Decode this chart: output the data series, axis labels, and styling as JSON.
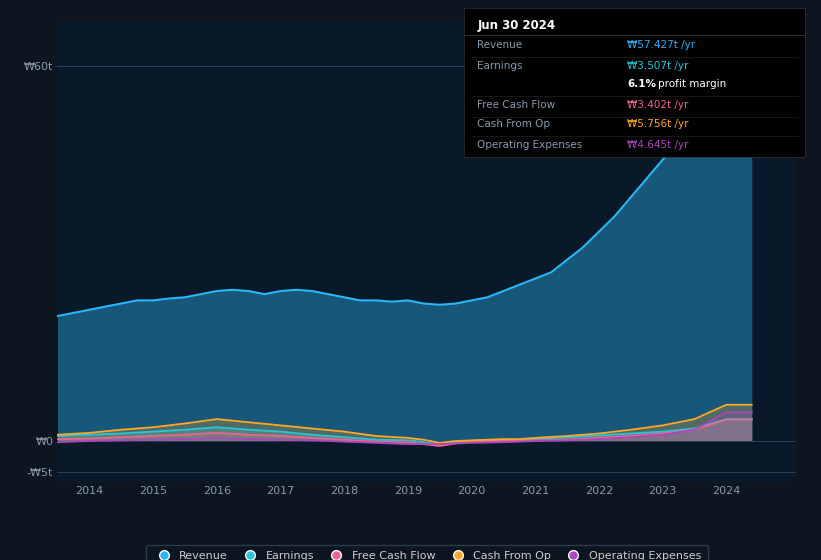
{
  "background_color": "#0d1520",
  "plot_bg_color": "#0a1929",
  "colors": {
    "revenue": "#29b6f6",
    "earnings": "#26c6da",
    "free_cash_flow": "#f06292",
    "cash_from_op": "#ffa726",
    "operating_expenses": "#ab47bc"
  },
  "ylim": [
    -6.5,
    67
  ],
  "xlim": [
    2013.5,
    2025.1
  ],
  "xtick_years": [
    2014,
    2015,
    2016,
    2017,
    2018,
    2019,
    2020,
    2021,
    2022,
    2023,
    2024
  ],
  "ytick_vals": [
    -5,
    0,
    60
  ],
  "ytick_labels": [
    "-₩5t",
    "₩0",
    "₩60t"
  ],
  "tooltip": {
    "date": "Jun 30 2024",
    "revenue_val": "₩57.427t",
    "earnings_val": "₩3.507t",
    "profit_margin": "6.1%",
    "fcf_val": "₩3.402t",
    "cash_from_op_val": "₩5.756t",
    "op_exp_val": "₩4.645t"
  },
  "legend_items": [
    [
      "Revenue",
      "#29b6f6"
    ],
    [
      "Earnings",
      "#26c6da"
    ],
    [
      "Free Cash Flow",
      "#f06292"
    ],
    [
      "Cash From Op",
      "#ffa726"
    ],
    [
      "Operating Expenses",
      "#ab47bc"
    ]
  ],
  "revenue_x": [
    2013.5,
    2013.75,
    2014.0,
    2014.25,
    2014.5,
    2014.75,
    2015.0,
    2015.25,
    2015.5,
    2015.75,
    2016.0,
    2016.25,
    2016.5,
    2016.75,
    2017.0,
    2017.25,
    2017.5,
    2017.75,
    2018.0,
    2018.25,
    2018.5,
    2018.75,
    2019.0,
    2019.25,
    2019.5,
    2019.75,
    2020.0,
    2020.25,
    2020.5,
    2020.75,
    2021.0,
    2021.25,
    2021.5,
    2021.75,
    2022.0,
    2022.25,
    2022.5,
    2022.75,
    2023.0,
    2023.25,
    2023.5,
    2023.75,
    2024.0,
    2024.25,
    2024.4
  ],
  "revenue_y": [
    20.0,
    20.5,
    21.0,
    21.5,
    22.0,
    22.5,
    22.5,
    22.8,
    23.0,
    23.5,
    24.0,
    24.2,
    24.0,
    23.5,
    24.0,
    24.2,
    24.0,
    23.5,
    23.0,
    22.5,
    22.5,
    22.3,
    22.5,
    22.0,
    21.8,
    22.0,
    22.5,
    23.0,
    24.0,
    25.0,
    26.0,
    27.0,
    29.0,
    31.0,
    33.5,
    36.0,
    39.0,
    42.0,
    45.0,
    48.0,
    52.0,
    55.5,
    58.5,
    57.5,
    57.0
  ],
  "earnings_x": [
    2013.5,
    2014.0,
    2014.5,
    2015.0,
    2015.5,
    2016.0,
    2016.5,
    2017.0,
    2017.5,
    2018.0,
    2018.5,
    2019.0,
    2019.25,
    2019.5,
    2019.75,
    2020.0,
    2020.25,
    2020.5,
    2020.75,
    2021.0,
    2021.5,
    2022.0,
    2022.5,
    2023.0,
    2023.5,
    2024.0,
    2024.4
  ],
  "earnings_y": [
    0.8,
    1.0,
    1.2,
    1.5,
    1.8,
    2.2,
    1.8,
    1.5,
    1.0,
    0.6,
    0.2,
    0.1,
    -0.2,
    -0.6,
    -0.2,
    0.0,
    0.2,
    0.1,
    0.1,
    0.3,
    0.6,
    0.9,
    1.2,
    1.5,
    2.0,
    3.5,
    3.5
  ],
  "fcf_x": [
    2013.5,
    2014.0,
    2014.5,
    2015.0,
    2015.5,
    2016.0,
    2016.5,
    2017.0,
    2017.5,
    2018.0,
    2018.5,
    2019.0,
    2019.25,
    2019.5,
    2019.75,
    2020.0,
    2020.5,
    2021.0,
    2021.5,
    2022.0,
    2022.5,
    2023.0,
    2023.5,
    2024.0,
    2024.4
  ],
  "fcf_y": [
    0.3,
    0.4,
    0.6,
    0.8,
    1.0,
    1.3,
    1.0,
    0.8,
    0.5,
    0.2,
    -0.1,
    -0.2,
    -0.5,
    -0.8,
    -0.4,
    -0.1,
    0.0,
    0.1,
    0.2,
    0.5,
    0.8,
    1.2,
    1.8,
    3.4,
    3.4
  ],
  "cop_x": [
    2013.5,
    2014.0,
    2014.5,
    2015.0,
    2015.5,
    2016.0,
    2016.5,
    2017.0,
    2017.5,
    2018.0,
    2018.5,
    2019.0,
    2019.25,
    2019.5,
    2019.75,
    2020.0,
    2020.25,
    2020.5,
    2020.75,
    2021.0,
    2021.5,
    2022.0,
    2022.5,
    2023.0,
    2023.5,
    2024.0,
    2024.4
  ],
  "cop_y": [
    1.0,
    1.3,
    1.8,
    2.2,
    2.8,
    3.5,
    3.0,
    2.5,
    2.0,
    1.5,
    0.8,
    0.5,
    0.2,
    -0.3,
    0.0,
    0.1,
    0.2,
    0.3,
    0.3,
    0.5,
    0.8,
    1.2,
    1.8,
    2.5,
    3.5,
    5.8,
    5.8
  ],
  "opex_x": [
    2013.5,
    2014.0,
    2014.5,
    2015.0,
    2015.5,
    2016.0,
    2016.5,
    2017.0,
    2017.5,
    2018.0,
    2018.5,
    2019.0,
    2019.5,
    2020.0,
    2020.5,
    2021.0,
    2021.5,
    2022.0,
    2022.5,
    2023.0,
    2023.5,
    2024.0,
    2024.4
  ],
  "opex_y": [
    -0.2,
    0.0,
    0.1,
    0.2,
    0.3,
    0.5,
    0.3,
    0.2,
    0.1,
    -0.1,
    -0.3,
    -0.5,
    -0.5,
    -0.3,
    -0.2,
    0.0,
    0.1,
    0.3,
    0.6,
    1.0,
    1.8,
    4.6,
    4.6
  ]
}
